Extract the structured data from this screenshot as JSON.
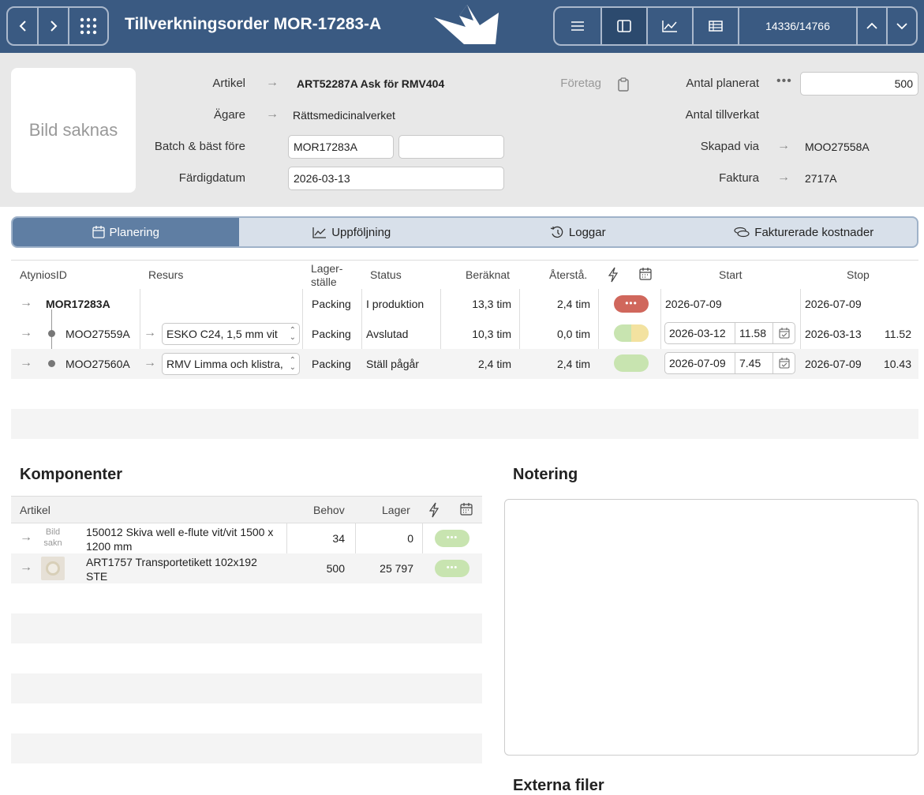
{
  "topbar": {
    "title": "Tillverkningsorder MOR-17283-A",
    "counter": "14336/14766",
    "colors": {
      "bar": "#3a5a82",
      "active": "#2c4a6e"
    }
  },
  "header": {
    "image_placeholder": "Bild saknas",
    "artikel_label": "Artikel",
    "artikel_value": "ART52287A Ask för RMV404",
    "agare_label": "Ägare",
    "agare_value": "Rättsmedicinalverket",
    "batch_label": "Batch & bäst före",
    "batch_value": "MOR17283A",
    "bast_fore_value": "",
    "fardigdatum_label": "Färdigdatum",
    "fardigdatum_value": "2026-03-13",
    "foretag_label": "Företag",
    "antal_planerat_label": "Antal planerat",
    "antal_planerat_value": "500",
    "antal_tillverkat_label": "Antal tillverkat",
    "skapad_via_label": "Skapad via",
    "skapad_via_value": "MOO27558A",
    "faktura_label": "Faktura",
    "faktura_value": "2717A"
  },
  "tabs": [
    {
      "label": "Planering",
      "icon": "calendar-icon",
      "active": true
    },
    {
      "label": "Uppföljning",
      "icon": "chart-icon",
      "active": false
    },
    {
      "label": "Loggar",
      "icon": "history-icon",
      "active": false
    },
    {
      "label": "Fakturerade kostnader",
      "icon": "coins-icon",
      "active": false
    }
  ],
  "orders": {
    "columns": {
      "id": "AtyniosID",
      "resurs": "Resurs",
      "lager_line1": "Lager-",
      "lager_line2": "ställe",
      "status": "Status",
      "beraknat": "Beräknat",
      "atersta": "Återstå.",
      "start": "Start",
      "stop": "Stop"
    },
    "rows": [
      {
        "id": "MOR17283A",
        "resurs": "",
        "lager": "Packing",
        "status": "I produktion",
        "beraknat": "13,3 tim",
        "atersta": "2,4 tim",
        "start_date": "2026-07-09",
        "start_time": "",
        "stop_date": "2026-07-09",
        "stop_time": ""
      },
      {
        "id": "MOO27559A",
        "resurs": "ESKO C24, 1,5 mm vit",
        "lager": "Packing",
        "status": "Avslutad",
        "beraknat": "10,3 tim",
        "atersta": "0,0 tim",
        "start_date": "2026-03-12",
        "start_time": "11.58",
        "stop_date": "2026-03-13",
        "stop_time": "11.52"
      },
      {
        "id": "MOO27560A",
        "resurs": "RMV Limma och klistra, Standard",
        "lager": "Packing",
        "status": "Ställ pågår",
        "beraknat": "2,4 tim",
        "atersta": "2,4 tim",
        "start_date": "2026-07-09",
        "start_time": "7.45",
        "stop_date": "2026-07-09",
        "stop_time": "10.43"
      }
    ],
    "status_colors": {
      "red": "#d0675c",
      "green": "#c8e4b0",
      "yellow": "#f3e2a0"
    }
  },
  "komponenter": {
    "title": "Komponenter",
    "columns": {
      "artikel": "Artikel",
      "behov": "Behov",
      "lager": "Lager"
    },
    "rows": [
      {
        "thumb": "Bild sakn",
        "name_line1": "150012 Skiva well e-flute vit/vit 1500 x",
        "name_line2": "1200 mm",
        "behov": "34",
        "lager": "0"
      },
      {
        "thumb": "",
        "name_line1": "ART1757 Transportetikett 102x192",
        "name_line2": "STE",
        "behov": "500",
        "lager": "25 797"
      }
    ]
  },
  "notering": {
    "title": "Notering"
  },
  "externa_filer": {
    "title": "Externa filer"
  }
}
